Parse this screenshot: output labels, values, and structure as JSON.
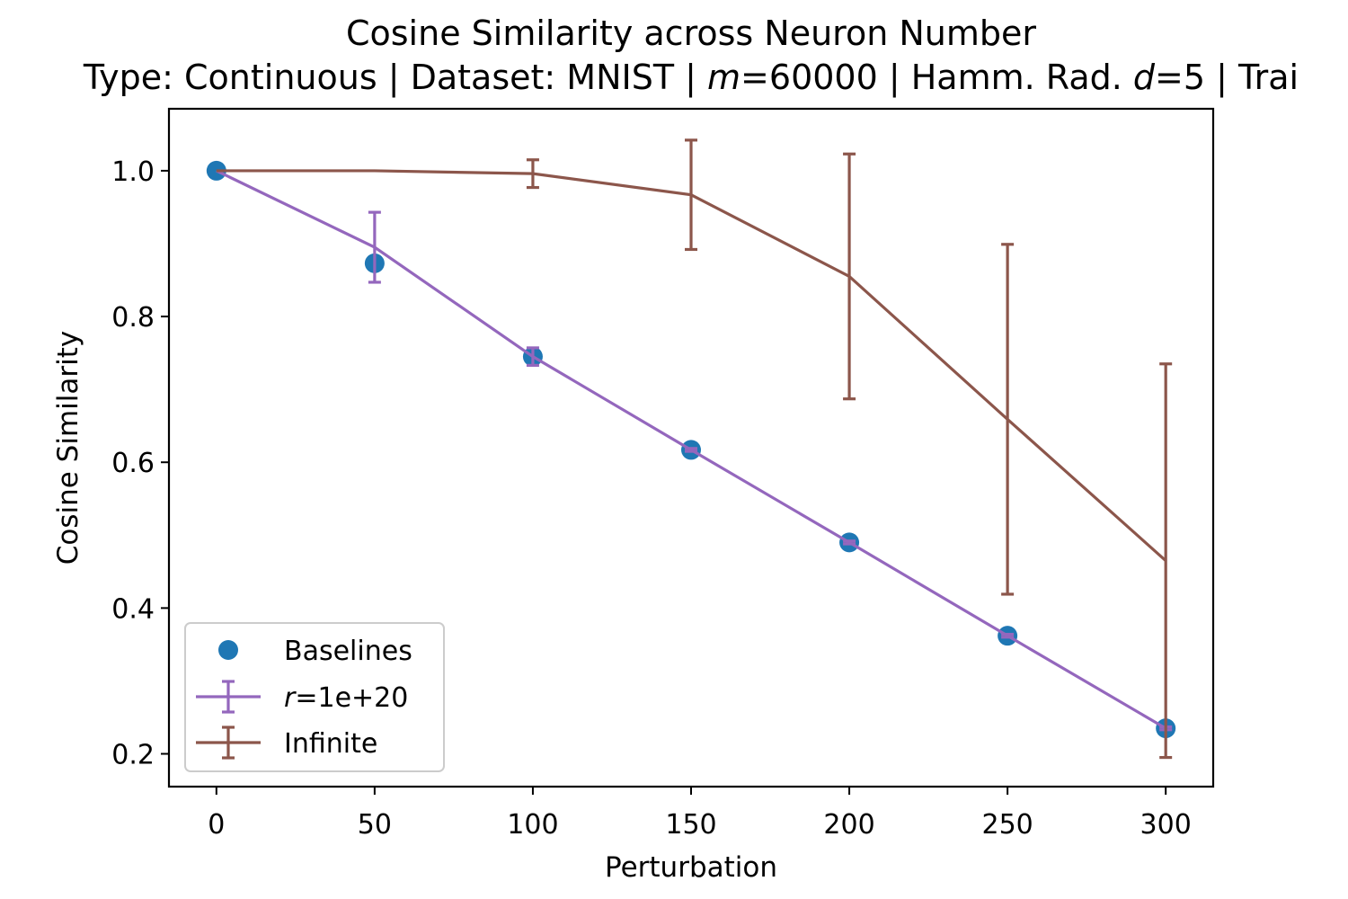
{
  "chart_data": {
    "type": "line",
    "title": "Cosine Similarity across Neuron Number",
    "subtitle": "Type: Continuous | Dataset: MNIST | m=60000 | Hamm. Rad. d=5 | Trai",
    "xlabel": "Perturbation",
    "ylabel": "Cosine Similarity",
    "xlim": [
      -15,
      315
    ],
    "ylim": [
      0.155,
      1.085
    ],
    "xticks": [
      0,
      50,
      100,
      150,
      200,
      250,
      300
    ],
    "yticks": [
      0.2,
      0.4,
      0.6,
      0.8,
      1.0
    ],
    "grid": false,
    "legend_position": "lower-left",
    "x": [
      0,
      50,
      100,
      150,
      200,
      250,
      300
    ],
    "series": [
      {
        "name": "Baselines",
        "kind": "scatter",
        "color": "#1f77b4",
        "values": [
          1.0,
          0.873,
          0.745,
          0.617,
          0.49,
          0.362,
          0.235
        ]
      },
      {
        "name": "r=1e+20",
        "kind": "errorbar-line",
        "color": "#9467bd",
        "values": [
          1.0,
          0.895,
          0.745,
          0.617,
          0.49,
          0.362,
          0.235
        ],
        "errors": [
          0.0,
          0.048,
          0.012,
          0.002,
          0.002,
          0.002,
          0.002
        ]
      },
      {
        "name": "Infinite",
        "kind": "errorbar-line",
        "color": "#8c564b",
        "values": [
          1.0,
          1.0,
          0.996,
          0.967,
          0.855,
          0.659,
          0.465
        ],
        "errors": [
          0.0,
          0.0,
          0.019,
          0.075,
          0.168,
          0.24,
          0.27
        ]
      }
    ]
  }
}
